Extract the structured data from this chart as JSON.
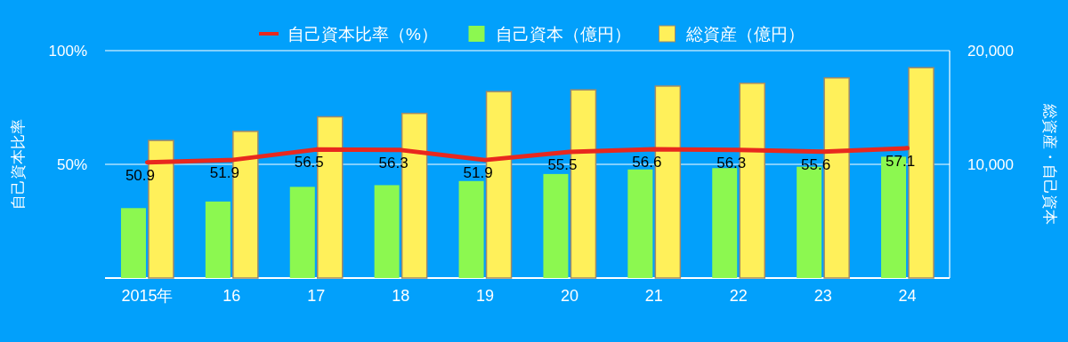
{
  "chart_data": {
    "type": "bar",
    "categories": [
      "2015年",
      "16",
      "17",
      "18",
      "19",
      "20",
      "21",
      "22",
      "23",
      "24"
    ],
    "series": [
      {
        "name": "自己資本比率（%）",
        "type": "line",
        "color": "#e8281e",
        "values": [
          50.9,
          51.9,
          56.5,
          56.3,
          51.9,
          55.5,
          56.6,
          56.3,
          55.6,
          57.1
        ],
        "value_labels": [
          "50.9",
          "51.9",
          "56.5",
          "56.3",
          "51.9",
          "55.5",
          "56.6",
          "56.3",
          "55.6",
          "57.1"
        ]
      },
      {
        "name": "自己資本（億円）",
        "type": "bar",
        "axis": "y2",
        "color": "#8cf850",
        "values": [
          6150,
          6730,
          8020,
          8170,
          8530,
          9150,
          9550,
          9670,
          9790,
          10670
        ]
      },
      {
        "name": "総資産（億円）",
        "type": "bar",
        "axis": "y2",
        "color": "#fff05a",
        "values": [
          12100,
          12900,
          14180,
          14480,
          16400,
          16550,
          16880,
          17130,
          17600,
          18500
        ]
      }
    ],
    "ylabel": "自己資本比率",
    "y2label": "総資産・自己資本",
    "ylim": [
      0,
      100
    ],
    "yticks": [
      {
        "value": 50,
        "label": "50%"
      },
      {
        "value": 100,
        "label": "100%"
      }
    ],
    "y2lim": [
      0,
      20000
    ],
    "y2ticks": [
      {
        "value": 10000,
        "label": "10,000"
      },
      {
        "value": 20000,
        "label": "20,000"
      }
    ],
    "grid": "y",
    "legend": "top"
  }
}
